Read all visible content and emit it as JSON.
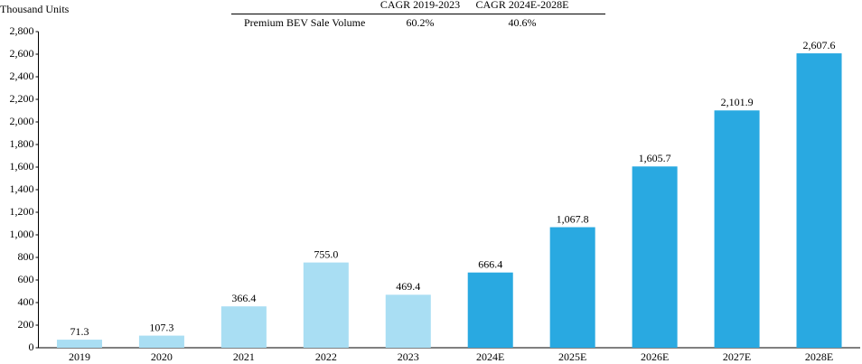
{
  "chart_data": {
    "type": "bar",
    "y_label": "Thousand Units",
    "categories": [
      "2019",
      "2020",
      "2021",
      "2022",
      "2023",
      "2024E",
      "2025E",
      "2026E",
      "2027E",
      "2028E"
    ],
    "values": [
      71.3,
      107.3,
      366.4,
      755.0,
      469.4,
      666.4,
      1067.8,
      1605.7,
      2101.9,
      2607.6
    ],
    "value_labels": [
      "71.3",
      "107.3",
      "366.4",
      "755.0",
      "469.4",
      "666.4",
      "1,067.8",
      "1,605.7",
      "2,101.9",
      "2,607.6"
    ],
    "colors": [
      "#a9def3",
      "#a9def3",
      "#a9def3",
      "#a9def3",
      "#a9def3",
      "#29a9e1",
      "#29a9e1",
      "#29a9e1",
      "#29a9e1",
      "#29a9e1"
    ],
    "ylim": [
      0,
      2800
    ],
    "yticks": [
      0,
      200,
      400,
      600,
      800,
      {
        "value": 1000,
        "label": "1,000"
      },
      {
        "value": 1200,
        "label": "1,200"
      },
      {
        "value": 1400,
        "label": "1,400"
      },
      {
        "value": 1600,
        "label": "1,600"
      },
      {
        "value": 1800,
        "label": "1,800"
      },
      {
        "value": 2000,
        "label": "2,000"
      },
      {
        "value": 2200,
        "label": "2,200"
      },
      {
        "value": 2400,
        "label": "2,400"
      },
      {
        "value": 2600,
        "label": "2,600"
      },
      {
        "value": 2800,
        "label": "2,800"
      }
    ],
    "grid": false,
    "cagr_table": {
      "columns": [
        "CAGR 2019-2023",
        "CAGR 2024E-2028E"
      ],
      "rows": [
        [
          "Premium BEV Sale Volume",
          "60.2%",
          "40.6%"
        ]
      ]
    }
  }
}
